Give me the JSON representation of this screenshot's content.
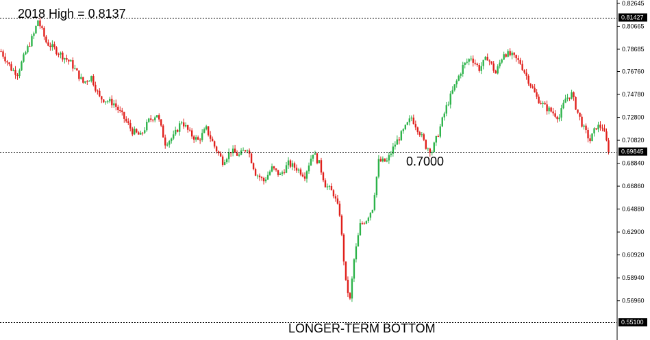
{
  "chart_data": {
    "type": "candlestick",
    "title": "",
    "xlabel": "",
    "ylabel": "",
    "ylim": [
      0.5505,
      0.827
    ],
    "y_ticks": [
      "0.82645",
      "0.80665",
      "0.78685",
      "0.76760",
      "0.74780",
      "0.72800",
      "0.70820",
      "0.68840",
      "0.66860",
      "0.64880",
      "0.62900",
      "0.60920",
      "0.58940",
      "0.56960"
    ],
    "price_tags": [
      {
        "label": "0.81427",
        "value": 0.81427
      },
      {
        "label": "0.69845",
        "value": 0.69845
      },
      {
        "label": "0.55100",
        "value": 0.551
      }
    ],
    "horizontal_levels": [
      0.81427,
      0.69845,
      0.551
    ],
    "annotations": [
      {
        "text": "2018 High = 0.8137",
        "anchor_value": 0.8137
      },
      {
        "text": "0.7000",
        "anchor_value": 0.7
      },
      {
        "text": "LONGER-TERM BOTTOM",
        "anchor_value": 0.551
      }
    ],
    "colors": {
      "up": "#2db34a",
      "down": "#e0201c",
      "level_line": "#000000",
      "tag_bg": "#000000"
    },
    "path_points": [
      {
        "i": 0,
        "v": 0.785
      },
      {
        "i": 5,
        "v": 0.77
      },
      {
        "i": 8,
        "v": 0.766
      },
      {
        "i": 12,
        "v": 0.784
      },
      {
        "i": 16,
        "v": 0.8
      },
      {
        "i": 18,
        "v": 0.812
      },
      {
        "i": 22,
        "v": 0.793
      },
      {
        "i": 28,
        "v": 0.784
      },
      {
        "i": 34,
        "v": 0.775
      },
      {
        "i": 40,
        "v": 0.758
      },
      {
        "i": 44,
        "v": 0.763
      },
      {
        "i": 48,
        "v": 0.745
      },
      {
        "i": 55,
        "v": 0.74
      },
      {
        "i": 60,
        "v": 0.727
      },
      {
        "i": 64,
        "v": 0.716
      },
      {
        "i": 68,
        "v": 0.712
      },
      {
        "i": 72,
        "v": 0.725
      },
      {
        "i": 76,
        "v": 0.731
      },
      {
        "i": 80,
        "v": 0.706
      },
      {
        "i": 84,
        "v": 0.711
      },
      {
        "i": 88,
        "v": 0.725
      },
      {
        "i": 92,
        "v": 0.714
      },
      {
        "i": 96,
        "v": 0.708
      },
      {
        "i": 100,
        "v": 0.718
      },
      {
        "i": 104,
        "v": 0.703
      },
      {
        "i": 108,
        "v": 0.69
      },
      {
        "i": 112,
        "v": 0.699
      },
      {
        "i": 116,
        "v": 0.695
      },
      {
        "i": 120,
        "v": 0.702
      },
      {
        "i": 124,
        "v": 0.68
      },
      {
        "i": 128,
        "v": 0.673
      },
      {
        "i": 132,
        "v": 0.684
      },
      {
        "i": 136,
        "v": 0.678
      },
      {
        "i": 140,
        "v": 0.688
      },
      {
        "i": 144,
        "v": 0.684
      },
      {
        "i": 148,
        "v": 0.678
      },
      {
        "i": 152,
        "v": 0.698
      },
      {
        "i": 155,
        "v": 0.688
      },
      {
        "i": 158,
        "v": 0.67
      },
      {
        "i": 162,
        "v": 0.662
      },
      {
        "i": 165,
        "v": 0.645
      },
      {
        "i": 168,
        "v": 0.585
      },
      {
        "i": 170,
        "v": 0.57
      },
      {
        "i": 172,
        "v": 0.605
      },
      {
        "i": 175,
        "v": 0.635
      },
      {
        "i": 178,
        "v": 0.64
      },
      {
        "i": 181,
        "v": 0.65
      },
      {
        "i": 184,
        "v": 0.69
      },
      {
        "i": 188,
        "v": 0.69
      },
      {
        "i": 192,
        "v": 0.705
      },
      {
        "i": 196,
        "v": 0.716
      },
      {
        "i": 200,
        "v": 0.728
      },
      {
        "i": 204,
        "v": 0.715
      },
      {
        "i": 207,
        "v": 0.703
      },
      {
        "i": 210,
        "v": 0.699
      },
      {
        "i": 213,
        "v": 0.714
      },
      {
        "i": 217,
        "v": 0.737
      },
      {
        "i": 221,
        "v": 0.755
      },
      {
        "i": 225,
        "v": 0.772
      },
      {
        "i": 229,
        "v": 0.78
      },
      {
        "i": 233,
        "v": 0.77
      },
      {
        "i": 237,
        "v": 0.78
      },
      {
        "i": 241,
        "v": 0.766
      },
      {
        "i": 245,
        "v": 0.784
      },
      {
        "i": 249,
        "v": 0.781
      },
      {
        "i": 253,
        "v": 0.775
      },
      {
        "i": 257,
        "v": 0.76
      },
      {
        "i": 261,
        "v": 0.745
      },
      {
        "i": 265,
        "v": 0.737
      },
      {
        "i": 269,
        "v": 0.732
      },
      {
        "i": 272,
        "v": 0.728
      },
      {
        "i": 275,
        "v": 0.744
      },
      {
        "i": 278,
        "v": 0.748
      },
      {
        "i": 281,
        "v": 0.732
      },
      {
        "i": 284,
        "v": 0.718
      },
      {
        "i": 287,
        "v": 0.708
      },
      {
        "i": 290,
        "v": 0.72
      },
      {
        "i": 293,
        "v": 0.72
      },
      {
        "i": 296,
        "v": 0.7
      }
    ]
  }
}
